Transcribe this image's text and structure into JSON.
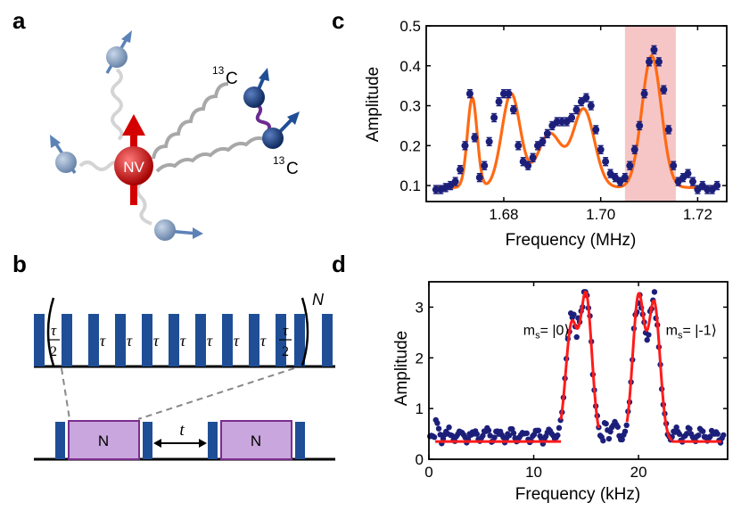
{
  "panels": {
    "a": "a",
    "b": "b",
    "c": "c",
    "d": "d"
  },
  "panel_a": {
    "nv_label": "NV",
    "c13_mass": "13",
    "c13_symbol": "C"
  },
  "panel_b": {
    "tau": "τ",
    "two": "2",
    "N_exp": "N",
    "block_label": "N",
    "t_label": "t",
    "colors": {
      "pulse": "#1f4e96",
      "block_fill": "#c9a6dd",
      "block_edge": "#7b2d8e",
      "dashed": "#888888"
    }
  },
  "chart_data": [
    {
      "id": "c",
      "type": "scatter",
      "title": "",
      "xlabel": "Frequency (MHz)",
      "ylabel": "Amplitude",
      "xlim": [
        1.664,
        1.726
      ],
      "ylim": [
        0.06,
        0.5
      ],
      "xticks": [
        1.68,
        1.7,
        1.72
      ],
      "xtick_labels": [
        "1.68",
        "1.70",
        "1.72"
      ],
      "yticks": [
        0.1,
        0.2,
        0.3,
        0.4,
        0.5
      ],
      "ytick_labels": [
        "0.1",
        "0.2",
        "0.3",
        "0.4",
        "0.5"
      ],
      "highlight": {
        "x_range": [
          1.705,
          1.7155
        ],
        "color": "#f6c6c6"
      },
      "errorbar": 0.01,
      "fit_color": "#ff6a13",
      "marker_color": "#1c1f7a",
      "series": [
        {
          "name": "data",
          "x": [
            1.666,
            1.667,
            1.668,
            1.669,
            1.67,
            1.671,
            1.672,
            1.673,
            1.674,
            1.675,
            1.676,
            1.677,
            1.678,
            1.679,
            1.68,
            1.681,
            1.682,
            1.683,
            1.684,
            1.685,
            1.686,
            1.687,
            1.688,
            1.689,
            1.69,
            1.691,
            1.692,
            1.693,
            1.694,
            1.695,
            1.696,
            1.697,
            1.698,
            1.699,
            1.7,
            1.701,
            1.702,
            1.703,
            1.704,
            1.705,
            1.706,
            1.707,
            1.708,
            1.709,
            1.71,
            1.711,
            1.712,
            1.713,
            1.714,
            1.715,
            1.716,
            1.717,
            1.718,
            1.719,
            1.72,
            1.721,
            1.722,
            1.723,
            1.724
          ],
          "y": [
            0.09,
            0.09,
            0.095,
            0.1,
            0.11,
            0.14,
            0.2,
            0.33,
            0.22,
            0.12,
            0.15,
            0.21,
            0.27,
            0.31,
            0.33,
            0.33,
            0.29,
            0.2,
            0.16,
            0.15,
            0.17,
            0.2,
            0.21,
            0.23,
            0.25,
            0.26,
            0.26,
            0.26,
            0.27,
            0.29,
            0.31,
            0.32,
            0.3,
            0.24,
            0.19,
            0.16,
            0.13,
            0.12,
            0.11,
            0.12,
            0.15,
            0.19,
            0.25,
            0.33,
            0.41,
            0.44,
            0.41,
            0.34,
            0.24,
            0.15,
            0.11,
            0.12,
            0.13,
            0.11,
            0.09,
            0.1,
            0.09,
            0.09,
            0.1
          ]
        }
      ],
      "fit": {
        "baseline": 0.095,
        "peaks": [
          {
            "center": 1.6735,
            "amplitude": 0.225,
            "sigma": 0.001
          },
          {
            "center": 1.6815,
            "amplitude": 0.235,
            "sigma": 0.0019
          },
          {
            "center": 1.6895,
            "amplitude": 0.135,
            "sigma": 0.0025
          },
          {
            "center": 1.6965,
            "amplitude": 0.195,
            "sigma": 0.0022
          },
          {
            "center": 1.7105,
            "amplitude": 0.33,
            "sigma": 0.002
          }
        ]
      }
    },
    {
      "id": "d",
      "type": "scatter",
      "title": "",
      "xlabel": "Frequency (kHz)",
      "ylabel": "Amplitude",
      "xlim": [
        0,
        28.5
      ],
      "ylim": [
        0,
        3.5
      ],
      "xticks": [
        0,
        10,
        20
      ],
      "xtick_labels": [
        "0",
        "10",
        "20"
      ],
      "yticks": [
        0,
        1,
        2,
        3
      ],
      "ytick_labels": [
        "0",
        "1",
        "2",
        "3"
      ],
      "fit_color": "#ff1a1a",
      "marker_color": "#1c1f7a",
      "annotations": [
        {
          "text": "m",
          "sub": "s",
          "rest": "= |0⟩",
          "x": 9.0,
          "y": 2.45
        },
        {
          "text": "m",
          "sub": "s",
          "rest": "= |-1⟩",
          "x": 22.6,
          "y": 2.45
        }
      ],
      "fit": {
        "baseline": 0.35,
        "baseline_ranges": [
          [
            0.6,
            12.6
          ],
          [
            23.2,
            27.9
          ]
        ],
        "peak_ranges": [
          [
            12.6,
            16.2
          ],
          [
            18.9,
            23.2
          ]
        ],
        "peaks": [
          {
            "center": 13.6,
            "amplitude": 2.6
          },
          {
            "center": 15.0,
            "amplitude": 3.2
          },
          {
            "center": 20.0,
            "amplitude": 3.2
          },
          {
            "center": 21.5,
            "amplitude": 3.05
          }
        ]
      }
    }
  ]
}
